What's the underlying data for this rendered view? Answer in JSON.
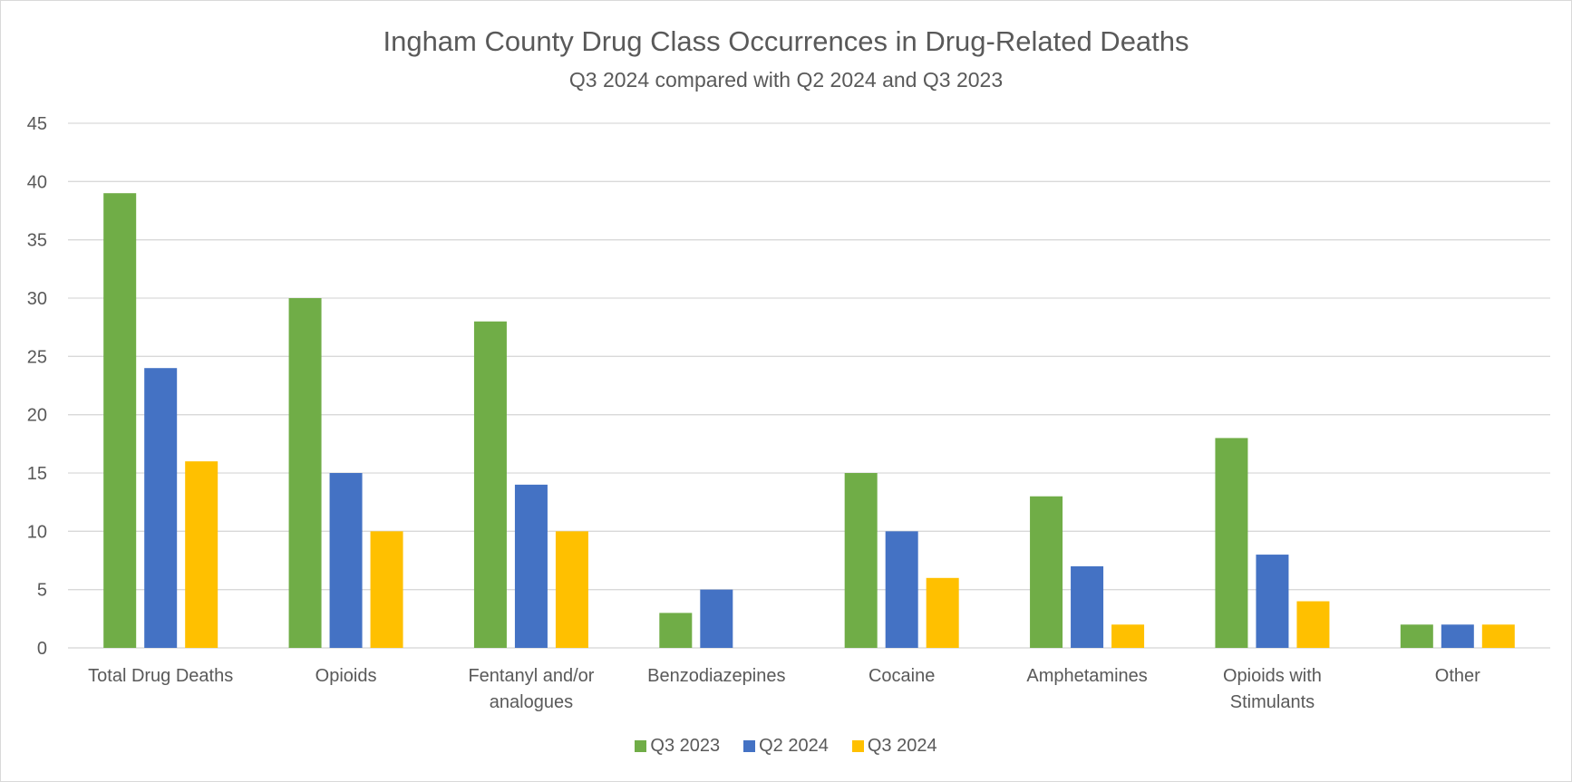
{
  "chart_data": {
    "type": "bar",
    "title": "Ingham County Drug Class Occurrences in Drug-Related Deaths",
    "subtitle": "Q3 2024 compared with Q2 2024 and Q3 2023",
    "categories": [
      [
        "Total Drug Deaths"
      ],
      [
        "Opioids"
      ],
      [
        "Fentanyl and/or",
        "analogues"
      ],
      [
        "Benzodiazepines"
      ],
      [
        "Cocaine"
      ],
      [
        "Amphetamines"
      ],
      [
        "Opioids with",
        "Stimulants"
      ],
      [
        "Other"
      ]
    ],
    "series": [
      {
        "name": "Q3 2023",
        "color": "#70ad47",
        "values": [
          39,
          30,
          28,
          3,
          15,
          13,
          18,
          2
        ]
      },
      {
        "name": "Q2 2024",
        "color": "#4472c4",
        "values": [
          24,
          15,
          14,
          5,
          10,
          7,
          8,
          2
        ]
      },
      {
        "name": "Q3 2024",
        "color": "#ffc000",
        "values": [
          16,
          10,
          10,
          0,
          6,
          2,
          4,
          2
        ]
      }
    ],
    "ylim": [
      0,
      45
    ],
    "yticks": [
      0,
      5,
      10,
      15,
      20,
      25,
      30,
      35,
      40,
      45
    ],
    "grid": true,
    "legend_position": "bottom"
  }
}
